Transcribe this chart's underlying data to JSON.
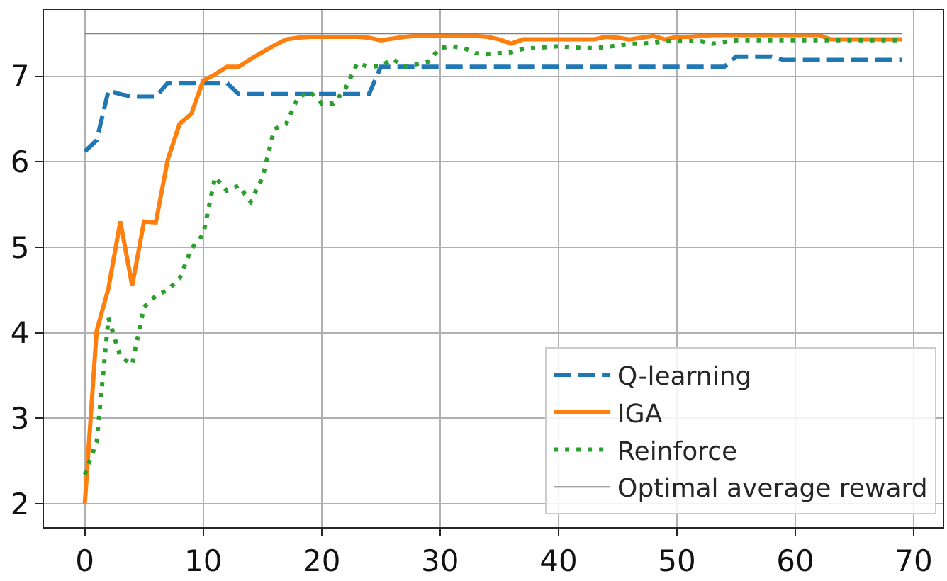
{
  "chart_data": {
    "type": "line",
    "x": [
      0,
      1,
      2,
      3,
      4,
      5,
      6,
      7,
      8,
      9,
      10,
      11,
      12,
      13,
      14,
      15,
      16,
      17,
      18,
      19,
      20,
      21,
      22,
      23,
      24,
      25,
      26,
      27,
      28,
      29,
      30,
      31,
      32,
      33,
      34,
      35,
      36,
      37,
      38,
      39,
      40,
      41,
      42,
      43,
      44,
      45,
      46,
      47,
      48,
      49,
      50,
      51,
      52,
      53,
      54,
      55,
      56,
      57,
      58,
      59,
      60,
      61,
      62,
      63,
      64,
      65,
      66,
      67,
      68,
      69
    ],
    "series": [
      {
        "name": "Q-learning",
        "color": "#1f77b4",
        "line_style": "dashed",
        "values": [
          6.12,
          6.25,
          6.83,
          6.79,
          6.76,
          6.76,
          6.76,
          6.92,
          6.92,
          6.92,
          6.92,
          6.92,
          6.92,
          6.79,
          6.79,
          6.79,
          6.79,
          6.79,
          6.79,
          6.79,
          6.79,
          6.79,
          6.79,
          6.79,
          6.79,
          7.11,
          7.11,
          7.11,
          7.11,
          7.11,
          7.11,
          7.11,
          7.11,
          7.11,
          7.11,
          7.11,
          7.11,
          7.11,
          7.11,
          7.11,
          7.11,
          7.11,
          7.11,
          7.11,
          7.11,
          7.11,
          7.11,
          7.11,
          7.11,
          7.11,
          7.11,
          7.11,
          7.11,
          7.11,
          7.11,
          7.23,
          7.23,
          7.23,
          7.23,
          7.19,
          7.19,
          7.19,
          7.19,
          7.19,
          7.19,
          7.19,
          7.19,
          7.19,
          7.19,
          7.19
        ]
      },
      {
        "name": "IGA",
        "color": "#ff7f0e",
        "line_style": "solid",
        "values": [
          2.0,
          4.02,
          4.52,
          5.3,
          4.55,
          5.3,
          5.29,
          6.02,
          6.44,
          6.56,
          6.95,
          7.02,
          7.11,
          7.11,
          7.2,
          7.28,
          7.36,
          7.43,
          7.45,
          7.46,
          7.46,
          7.46,
          7.46,
          7.46,
          7.45,
          7.42,
          7.44,
          7.46,
          7.47,
          7.47,
          7.47,
          7.47,
          7.47,
          7.47,
          7.46,
          7.43,
          7.38,
          7.43,
          7.43,
          7.43,
          7.43,
          7.43,
          7.43,
          7.43,
          7.46,
          7.45,
          7.43,
          7.45,
          7.47,
          7.43,
          7.46,
          7.46,
          7.47,
          7.48,
          7.48,
          7.48,
          7.48,
          7.48,
          7.48,
          7.48,
          7.48,
          7.48,
          7.48,
          7.43,
          7.43,
          7.43,
          7.43,
          7.43,
          7.43,
          7.43
        ]
      },
      {
        "name": "Reinforce",
        "color": "#2ca02c",
        "line_style": "dotted",
        "values": [
          2.34,
          2.72,
          4.17,
          3.72,
          3.63,
          4.3,
          4.43,
          4.5,
          4.63,
          4.98,
          5.15,
          5.82,
          5.66,
          5.72,
          5.53,
          5.81,
          6.38,
          6.44,
          6.75,
          6.82,
          6.68,
          6.68,
          6.85,
          7.15,
          7.11,
          7.12,
          7.2,
          7.11,
          7.14,
          7.17,
          7.33,
          7.35,
          7.33,
          7.27,
          7.26,
          7.27,
          7.28,
          7.32,
          7.33,
          7.34,
          7.35,
          7.34,
          7.33,
          7.33,
          7.34,
          7.36,
          7.38,
          7.38,
          7.39,
          7.41,
          7.41,
          7.41,
          7.41,
          7.38,
          7.4,
          7.42,
          7.42,
          7.42,
          7.42,
          7.42,
          7.42,
          7.42,
          7.42,
          7.42,
          7.42,
          7.42,
          7.42,
          7.42,
          7.42,
          7.42
        ]
      }
    ],
    "ref_lines": [
      {
        "axis": "y",
        "value": 7.5,
        "label": "Optimal average reward",
        "color": "#808080",
        "line_style": "solid"
      }
    ],
    "xlim": [
      -3.45,
      72.45
    ],
    "xticks": [
      0,
      10,
      20,
      30,
      40,
      50,
      60,
      70
    ],
    "ylim": [
      1.725,
      7.775
    ],
    "yticks": [
      2,
      3,
      4,
      5,
      6,
      7
    ],
    "grid": true,
    "legend": "bottom right"
  }
}
